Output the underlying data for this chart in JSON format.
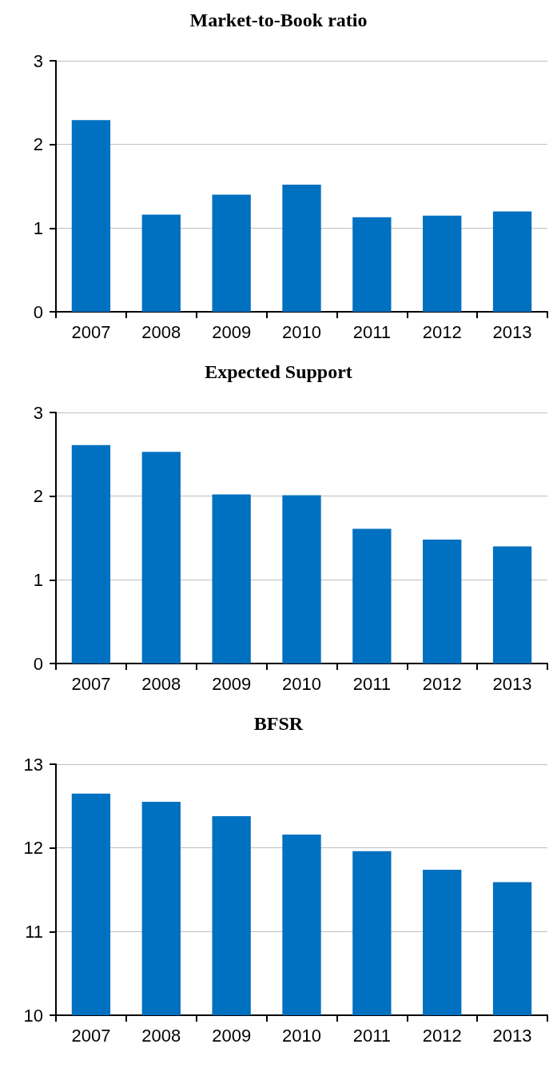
{
  "chart_data": [
    {
      "type": "bar",
      "title": "Market-to-Book ratio",
      "categories": [
        "2007",
        "2008",
        "2009",
        "2010",
        "2011",
        "2012",
        "2013"
      ],
      "values": [
        2.29,
        1.16,
        1.4,
        1.52,
        1.13,
        1.15,
        1.2
      ],
      "color": "#0070c0",
      "ylim": [
        0,
        3
      ],
      "yticks": [
        0,
        1,
        2,
        3
      ],
      "grid": "y"
    },
    {
      "type": "bar",
      "title": "Expected Support",
      "categories": [
        "2007",
        "2008",
        "2009",
        "2010",
        "2011",
        "2012",
        "2013"
      ],
      "values": [
        2.61,
        2.53,
        2.02,
        2.01,
        1.61,
        1.48,
        1.4
      ],
      "color": "#0070c0",
      "ylim": [
        0,
        3
      ],
      "yticks": [
        0,
        1,
        2,
        3
      ],
      "grid": "y"
    },
    {
      "type": "bar",
      "title": "BFSR",
      "categories": [
        "2007",
        "2008",
        "2009",
        "2010",
        "2011",
        "2012",
        "2013"
      ],
      "values": [
        12.65,
        12.55,
        12.38,
        12.16,
        11.96,
        11.74,
        11.59
      ],
      "color": "#0070c0",
      "ylim": [
        10,
        13
      ],
      "yticks": [
        10,
        11,
        12,
        13
      ],
      "grid": "y"
    }
  ]
}
